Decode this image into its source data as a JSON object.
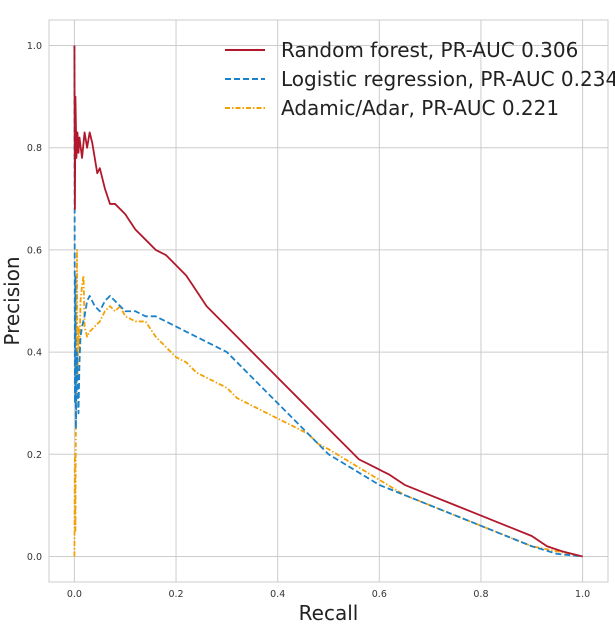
{
  "chart_data": {
    "type": "line",
    "xlabel": "Recall",
    "ylabel": "Precision",
    "xlim": [
      -0.05,
      1.05
    ],
    "ylim": [
      -0.05,
      1.05
    ],
    "xticks": [
      0.0,
      0.2,
      0.4,
      0.6,
      0.8,
      1.0
    ],
    "yticks": [
      0.0,
      0.2,
      0.4,
      0.6,
      0.8,
      1.0
    ],
    "xtick_labels": [
      "0.0",
      "0.2",
      "0.4",
      "0.6",
      "0.8",
      "1.0"
    ],
    "ytick_labels": [
      "0.0",
      "0.2",
      "0.4",
      "0.6",
      "0.8",
      "1.0"
    ],
    "grid": true,
    "legend_position": "top-right",
    "series": [
      {
        "name": "Random forest, PR-AUC 0.306",
        "color": "#b2182b",
        "style": "solid",
        "points": [
          [
            0.0,
            1.0
          ],
          [
            0.001,
            0.68
          ],
          [
            0.002,
            0.9
          ],
          [
            0.004,
            0.78
          ],
          [
            0.006,
            0.83
          ],
          [
            0.008,
            0.79
          ],
          [
            0.01,
            0.82
          ],
          [
            0.015,
            0.78
          ],
          [
            0.02,
            0.83
          ],
          [
            0.025,
            0.8
          ],
          [
            0.03,
            0.83
          ],
          [
            0.035,
            0.81
          ],
          [
            0.04,
            0.78
          ],
          [
            0.045,
            0.75
          ],
          [
            0.05,
            0.76
          ],
          [
            0.06,
            0.72
          ],
          [
            0.07,
            0.69
          ],
          [
            0.08,
            0.69
          ],
          [
            0.1,
            0.67
          ],
          [
            0.12,
            0.64
          ],
          [
            0.14,
            0.62
          ],
          [
            0.16,
            0.6
          ],
          [
            0.18,
            0.59
          ],
          [
            0.2,
            0.57
          ],
          [
            0.22,
            0.55
          ],
          [
            0.24,
            0.52
          ],
          [
            0.26,
            0.49
          ],
          [
            0.28,
            0.47
          ],
          [
            0.3,
            0.45
          ],
          [
            0.32,
            0.43
          ],
          [
            0.34,
            0.41
          ],
          [
            0.36,
            0.39
          ],
          [
            0.38,
            0.37
          ],
          [
            0.4,
            0.35
          ],
          [
            0.42,
            0.33
          ],
          [
            0.44,
            0.31
          ],
          [
            0.46,
            0.29
          ],
          [
            0.48,
            0.27
          ],
          [
            0.5,
            0.25
          ],
          [
            0.52,
            0.23
          ],
          [
            0.54,
            0.21
          ],
          [
            0.56,
            0.19
          ],
          [
            0.58,
            0.18
          ],
          [
            0.6,
            0.17
          ],
          [
            0.62,
            0.16
          ],
          [
            0.65,
            0.14
          ],
          [
            0.7,
            0.12
          ],
          [
            0.75,
            0.1
          ],
          [
            0.8,
            0.08
          ],
          [
            0.85,
            0.06
          ],
          [
            0.9,
            0.04
          ],
          [
            0.93,
            0.02
          ],
          [
            0.96,
            0.01
          ],
          [
            1.0,
            0.0
          ]
        ]
      },
      {
        "name": "Logistic regression, PR-AUC 0.234",
        "color": "#1b82c9",
        "style": "dashed",
        "points": [
          [
            0.0,
            1.0
          ],
          [
            0.001,
            0.3
          ],
          [
            0.002,
            0.55
          ],
          [
            0.003,
            0.25
          ],
          [
            0.005,
            0.4
          ],
          [
            0.008,
            0.28
          ],
          [
            0.01,
            0.38
          ],
          [
            0.012,
            0.43
          ],
          [
            0.015,
            0.45
          ],
          [
            0.02,
            0.47
          ],
          [
            0.025,
            0.5
          ],
          [
            0.03,
            0.51
          ],
          [
            0.04,
            0.49
          ],
          [
            0.05,
            0.48
          ],
          [
            0.06,
            0.5
          ],
          [
            0.07,
            0.51
          ],
          [
            0.08,
            0.5
          ],
          [
            0.1,
            0.48
          ],
          [
            0.12,
            0.48
          ],
          [
            0.14,
            0.47
          ],
          [
            0.16,
            0.47
          ],
          [
            0.18,
            0.46
          ],
          [
            0.2,
            0.45
          ],
          [
            0.22,
            0.44
          ],
          [
            0.24,
            0.43
          ],
          [
            0.26,
            0.42
          ],
          [
            0.28,
            0.41
          ],
          [
            0.3,
            0.4
          ],
          [
            0.32,
            0.38
          ],
          [
            0.34,
            0.36
          ],
          [
            0.36,
            0.34
          ],
          [
            0.38,
            0.32
          ],
          [
            0.4,
            0.3
          ],
          [
            0.42,
            0.28
          ],
          [
            0.44,
            0.26
          ],
          [
            0.46,
            0.24
          ],
          [
            0.48,
            0.22
          ],
          [
            0.5,
            0.2
          ],
          [
            0.55,
            0.17
          ],
          [
            0.6,
            0.14
          ],
          [
            0.65,
            0.12
          ],
          [
            0.7,
            0.1
          ],
          [
            0.75,
            0.08
          ],
          [
            0.8,
            0.06
          ],
          [
            0.85,
            0.04
          ],
          [
            0.9,
            0.02
          ],
          [
            0.95,
            0.005
          ],
          [
            1.0,
            0.0
          ]
        ]
      },
      {
        "name": "Adamic/Adar, PR-AUC 0.221",
        "color": "#f5a105",
        "style": "dashdot",
        "points": [
          [
            0.0,
            0.0
          ],
          [
            0.001,
            0.2
          ],
          [
            0.002,
            0.05
          ],
          [
            0.003,
            0.3
          ],
          [
            0.005,
            0.6
          ],
          [
            0.006,
            0.35
          ],
          [
            0.008,
            0.45
          ],
          [
            0.01,
            0.4
          ],
          [
            0.012,
            0.5
          ],
          [
            0.015,
            0.53
          ],
          [
            0.018,
            0.55
          ],
          [
            0.02,
            0.45
          ],
          [
            0.025,
            0.43
          ],
          [
            0.03,
            0.44
          ],
          [
            0.04,
            0.45
          ],
          [
            0.05,
            0.46
          ],
          [
            0.06,
            0.48
          ],
          [
            0.07,
            0.49
          ],
          [
            0.08,
            0.48
          ],
          [
            0.09,
            0.49
          ],
          [
            0.1,
            0.47
          ],
          [
            0.12,
            0.46
          ],
          [
            0.14,
            0.46
          ],
          [
            0.16,
            0.43
          ],
          [
            0.18,
            0.41
          ],
          [
            0.2,
            0.39
          ],
          [
            0.22,
            0.38
          ],
          [
            0.24,
            0.36
          ],
          [
            0.26,
            0.35
          ],
          [
            0.28,
            0.34
          ],
          [
            0.3,
            0.33
          ],
          [
            0.32,
            0.31
          ],
          [
            0.34,
            0.3
          ],
          [
            0.36,
            0.29
          ],
          [
            0.38,
            0.28
          ],
          [
            0.4,
            0.27
          ],
          [
            0.42,
            0.26
          ],
          [
            0.44,
            0.25
          ],
          [
            0.46,
            0.24
          ],
          [
            0.48,
            0.22
          ],
          [
            0.5,
            0.21
          ],
          [
            0.55,
            0.18
          ],
          [
            0.6,
            0.15
          ],
          [
            0.65,
            0.12
          ],
          [
            0.7,
            0.1
          ],
          [
            0.75,
            0.08
          ],
          [
            0.8,
            0.06
          ],
          [
            0.85,
            0.04
          ],
          [
            0.9,
            0.02
          ],
          [
            0.95,
            0.01
          ],
          [
            1.0,
            0.0
          ]
        ]
      }
    ]
  }
}
